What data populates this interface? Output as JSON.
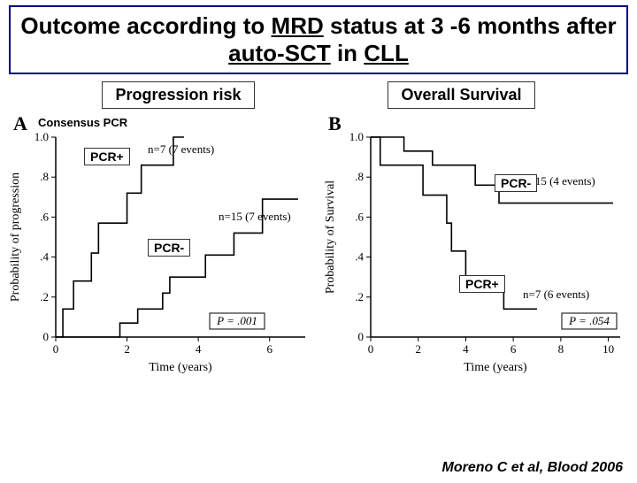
{
  "title": {
    "text": "Outcome according to MRD status at 3 -6 months after auto-SCT in CLL",
    "underline_words": [
      "MRD",
      "auto-SCT",
      "CLL"
    ],
    "fontsize": 26,
    "color": "#000000",
    "border_color": "#000080"
  },
  "subheads": {
    "left": "Progression risk",
    "right": "Overall Survival",
    "fontsize": 18
  },
  "panelA": {
    "letter": "A",
    "consensus": "Consensus PCR",
    "y_label": "Probability of progression",
    "x_label": "Time (years)",
    "xlim": [
      0,
      7
    ],
    "ylim": [
      0,
      1.0
    ],
    "xticks": [
      0,
      2,
      4,
      6
    ],
    "yticks": [
      0,
      0.2,
      0.4,
      0.6,
      0.8,
      1.0
    ],
    "ytick_labels": [
      "0",
      ".2",
      ".4",
      ".6",
      ".8",
      "1.0"
    ],
    "series_a_label": "PCR+",
    "series_a_n": "n=7 (7 events)",
    "series_a_points": [
      [
        0,
        0
      ],
      [
        0.2,
        0
      ],
      [
        0.2,
        0.14
      ],
      [
        0.5,
        0.14
      ],
      [
        0.5,
        0.28
      ],
      [
        1.0,
        0.28
      ],
      [
        1.0,
        0.42
      ],
      [
        1.2,
        0.42
      ],
      [
        1.2,
        0.57
      ],
      [
        2.0,
        0.57
      ],
      [
        2.0,
        0.72
      ],
      [
        2.4,
        0.72
      ],
      [
        2.4,
        0.86
      ],
      [
        3.3,
        0.86
      ],
      [
        3.3,
        1.0
      ],
      [
        3.6,
        1.0
      ]
    ],
    "series_b_label": "PCR-",
    "series_b_n": "n=15 (7 events)",
    "series_b_points": [
      [
        0,
        0
      ],
      [
        1.8,
        0
      ],
      [
        1.8,
        0.07
      ],
      [
        2.3,
        0.07
      ],
      [
        2.3,
        0.14
      ],
      [
        3.0,
        0.14
      ],
      [
        3.0,
        0.22
      ],
      [
        3.2,
        0.22
      ],
      [
        3.2,
        0.3
      ],
      [
        4.2,
        0.3
      ],
      [
        4.2,
        0.41
      ],
      [
        5.0,
        0.41
      ],
      [
        5.0,
        0.52
      ],
      [
        5.8,
        0.52
      ],
      [
        5.8,
        0.69
      ],
      [
        6.8,
        0.69
      ]
    ],
    "p_label": "P = .001",
    "line_color": "#000000",
    "background": "#ffffff"
  },
  "panelB": {
    "letter": "B",
    "y_label": "Probability of Survival",
    "x_label": "Time (years)",
    "xlim": [
      0,
      10.5
    ],
    "ylim": [
      0,
      1.0
    ],
    "xticks": [
      0,
      2,
      4,
      6,
      8,
      10
    ],
    "yticks": [
      0,
      0.2,
      0.4,
      0.6,
      0.8,
      1.0
    ],
    "ytick_labels": [
      "0",
      ".2",
      ".4",
      ".6",
      ".8",
      "1.0"
    ],
    "series_a_label": "PCR-",
    "series_a_n": "n=15 (4 events)",
    "series_a_points": [
      [
        0,
        1.0
      ],
      [
        1.4,
        1.0
      ],
      [
        1.4,
        0.93
      ],
      [
        2.6,
        0.93
      ],
      [
        2.6,
        0.86
      ],
      [
        4.4,
        0.86
      ],
      [
        4.4,
        0.76
      ],
      [
        5.4,
        0.76
      ],
      [
        5.4,
        0.67
      ],
      [
        10.2,
        0.67
      ]
    ],
    "series_b_label": "PCR+",
    "series_b_n": "n=7 (6 events)",
    "series_b_points": [
      [
        0,
        1.0
      ],
      [
        0.4,
        1.0
      ],
      [
        0.4,
        0.86
      ],
      [
        2.2,
        0.86
      ],
      [
        2.2,
        0.71
      ],
      [
        3.2,
        0.71
      ],
      [
        3.2,
        0.57
      ],
      [
        3.4,
        0.57
      ],
      [
        3.4,
        0.43
      ],
      [
        4.0,
        0.43
      ],
      [
        4.0,
        0.29
      ],
      [
        5.6,
        0.29
      ],
      [
        5.6,
        0.14
      ],
      [
        7.0,
        0.14
      ]
    ],
    "p_label": "P = .054",
    "line_color": "#000000",
    "background": "#ffffff"
  },
  "citation": "Moreno C et al, Blood 2006"
}
